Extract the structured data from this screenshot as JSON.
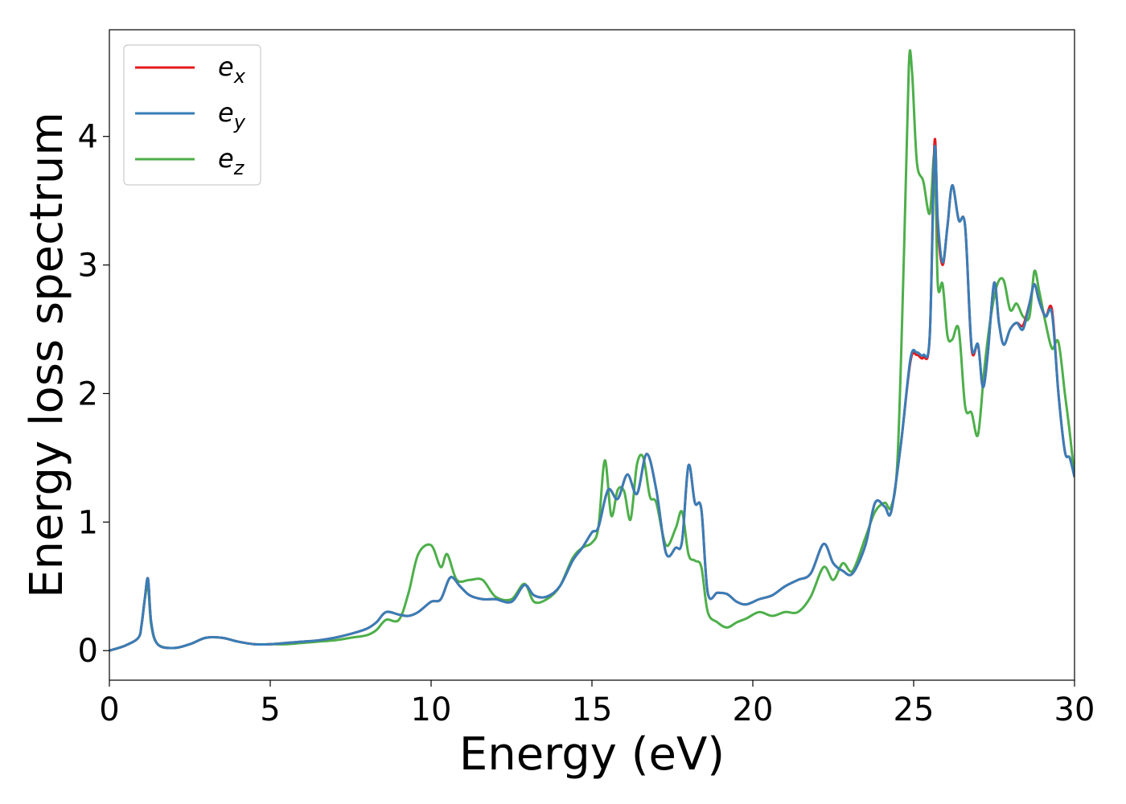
{
  "chart_data": {
    "type": "line",
    "xlabel": "Energy (eV)",
    "ylabel": "Energy loss spectrum",
    "xlim": [
      0,
      30
    ],
    "ylim": [
      -0.23,
      4.83
    ],
    "xticks": [
      0,
      5,
      10,
      15,
      20,
      25,
      30
    ],
    "yticks": [
      0,
      1,
      2,
      3,
      4
    ],
    "xtick_labels": [
      "0",
      "5",
      "10",
      "15",
      "20",
      "25",
      "30"
    ],
    "ytick_labels": [
      "0",
      "1",
      "2",
      "3",
      "4"
    ],
    "grid": false,
    "legend_position": "top-left",
    "series": [
      {
        "name": "e",
        "subscript": "x",
        "color": "#e41a1c",
        "x": [
          0,
          0.5,
          0.9,
          1.0,
          1.1,
          1.2,
          1.3,
          1.5,
          2.0,
          2.5,
          3.0,
          3.5,
          4.0,
          4.5,
          5.0,
          5.5,
          6.0,
          6.5,
          7.0,
          7.5,
          8.0,
          8.3,
          8.6,
          9.0,
          9.3,
          9.6,
          10.0,
          10.3,
          10.6,
          10.9,
          11.2,
          11.6,
          12.0,
          12.5,
          12.9,
          13.2,
          13.6,
          14.0,
          14.4,
          14.7,
          15.0,
          15.2,
          15.5,
          15.8,
          16.1,
          16.4,
          16.7,
          17.0,
          17.3,
          17.6,
          17.8,
          18.0,
          18.2,
          18.4,
          18.6,
          18.9,
          19.2,
          19.5,
          19.8,
          20.2,
          20.6,
          21.0,
          21.4,
          21.8,
          22.2,
          22.5,
          22.8,
          23.1,
          23.5,
          23.8,
          24.1,
          24.3,
          24.6,
          24.9,
          25.1,
          25.3,
          25.5,
          25.65,
          25.75,
          25.9,
          26.05,
          26.2,
          26.4,
          26.6,
          26.8,
          27.0,
          27.15,
          27.3,
          27.5,
          27.65,
          27.8,
          28.0,
          28.2,
          28.4,
          28.6,
          28.75,
          28.9,
          29.1,
          29.3,
          29.5,
          29.7,
          29.85,
          30.0
        ],
        "y": [
          0,
          0.04,
          0.1,
          0.2,
          0.4,
          0.56,
          0.22,
          0.05,
          0.02,
          0.05,
          0.1,
          0.1,
          0.07,
          0.05,
          0.05,
          0.06,
          0.07,
          0.08,
          0.1,
          0.13,
          0.17,
          0.22,
          0.3,
          0.28,
          0.27,
          0.3,
          0.38,
          0.4,
          0.57,
          0.5,
          0.43,
          0.4,
          0.4,
          0.38,
          0.51,
          0.43,
          0.42,
          0.5,
          0.7,
          0.8,
          0.92,
          0.96,
          1.25,
          1.18,
          1.37,
          1.22,
          1.53,
          1.25,
          0.76,
          0.8,
          0.85,
          1.44,
          1.15,
          1.1,
          0.45,
          0.45,
          0.44,
          0.38,
          0.36,
          0.4,
          0.43,
          0.5,
          0.55,
          0.6,
          0.83,
          0.68,
          0.62,
          0.6,
          0.82,
          1.15,
          1.12,
          1.08,
          1.6,
          2.25,
          2.3,
          2.28,
          2.45,
          3.96,
          3.3,
          3.0,
          3.3,
          3.62,
          3.35,
          3.3,
          2.35,
          2.38,
          2.05,
          2.3,
          2.86,
          2.55,
          2.38,
          2.5,
          2.55,
          2.53,
          2.7,
          2.85,
          2.72,
          2.6,
          2.65,
          2.0,
          1.55,
          1.5,
          1.35
        ]
      },
      {
        "name": "e",
        "subscript": "y",
        "color": "#377eb8",
        "x": [
          0,
          0.5,
          0.9,
          1.0,
          1.1,
          1.2,
          1.3,
          1.5,
          2.0,
          2.5,
          3.0,
          3.5,
          4.0,
          4.5,
          5.0,
          5.5,
          6.0,
          6.5,
          7.0,
          7.5,
          8.0,
          8.3,
          8.6,
          9.0,
          9.3,
          9.6,
          10.0,
          10.3,
          10.6,
          10.9,
          11.2,
          11.6,
          12.0,
          12.5,
          12.9,
          13.2,
          13.6,
          14.0,
          14.4,
          14.7,
          15.0,
          15.2,
          15.5,
          15.8,
          16.1,
          16.4,
          16.7,
          17.0,
          17.3,
          17.6,
          17.8,
          18.0,
          18.2,
          18.4,
          18.6,
          18.9,
          19.2,
          19.5,
          19.8,
          20.2,
          20.6,
          21.0,
          21.4,
          21.8,
          22.2,
          22.5,
          22.8,
          23.1,
          23.5,
          23.8,
          24.1,
          24.3,
          24.6,
          24.9,
          25.1,
          25.3,
          25.5,
          25.65,
          25.75,
          25.9,
          26.05,
          26.2,
          26.4,
          26.6,
          26.8,
          27.0,
          27.15,
          27.3,
          27.5,
          27.65,
          27.8,
          28.0,
          28.2,
          28.4,
          28.6,
          28.75,
          28.9,
          29.1,
          29.3,
          29.5,
          29.7,
          29.85,
          30.0
        ],
        "y": [
          0,
          0.04,
          0.1,
          0.2,
          0.4,
          0.56,
          0.22,
          0.05,
          0.02,
          0.05,
          0.1,
          0.1,
          0.07,
          0.05,
          0.05,
          0.06,
          0.07,
          0.08,
          0.1,
          0.13,
          0.17,
          0.22,
          0.3,
          0.28,
          0.27,
          0.3,
          0.38,
          0.4,
          0.57,
          0.5,
          0.43,
          0.4,
          0.4,
          0.38,
          0.51,
          0.43,
          0.42,
          0.5,
          0.7,
          0.8,
          0.92,
          0.96,
          1.25,
          1.18,
          1.37,
          1.22,
          1.53,
          1.25,
          0.76,
          0.8,
          0.85,
          1.44,
          1.15,
          1.1,
          0.45,
          0.45,
          0.44,
          0.38,
          0.36,
          0.4,
          0.43,
          0.5,
          0.55,
          0.6,
          0.83,
          0.68,
          0.62,
          0.6,
          0.82,
          1.15,
          1.12,
          1.08,
          1.6,
          2.27,
          2.32,
          2.3,
          2.45,
          3.9,
          3.35,
          3.02,
          3.3,
          3.62,
          3.35,
          3.3,
          2.37,
          2.38,
          2.05,
          2.3,
          2.86,
          2.55,
          2.38,
          2.5,
          2.55,
          2.5,
          2.7,
          2.85,
          2.72,
          2.6,
          2.62,
          2.0,
          1.55,
          1.5,
          1.35
        ]
      },
      {
        "name": "e",
        "subscript": "z",
        "color": "#4daf4a",
        "x": [
          0,
          0.5,
          0.9,
          1.0,
          1.1,
          1.2,
          1.3,
          1.5,
          2.0,
          2.5,
          3.0,
          3.5,
          4.0,
          4.5,
          5.0,
          5.5,
          6.0,
          6.5,
          7.0,
          7.5,
          8.0,
          8.3,
          8.6,
          9.0,
          9.3,
          9.6,
          10.0,
          10.3,
          10.5,
          10.8,
          11.2,
          11.6,
          12.0,
          12.5,
          12.9,
          13.2,
          13.6,
          14.0,
          14.4,
          14.7,
          15.0,
          15.2,
          15.4,
          15.6,
          15.8,
          16.0,
          16.2,
          16.4,
          16.6,
          16.8,
          17.0,
          17.3,
          17.6,
          17.8,
          18.0,
          18.2,
          18.4,
          18.6,
          18.9,
          19.2,
          19.5,
          19.8,
          20.2,
          20.6,
          21.0,
          21.4,
          21.8,
          22.2,
          22.5,
          22.8,
          23.1,
          23.5,
          23.8,
          24.1,
          24.3,
          24.5,
          24.7,
          24.85,
          24.95,
          25.1,
          25.3,
          25.5,
          25.65,
          25.75,
          25.9,
          26.05,
          26.2,
          26.4,
          26.6,
          26.8,
          27.0,
          27.2,
          27.4,
          27.6,
          27.8,
          28.0,
          28.2,
          28.4,
          28.6,
          28.75,
          28.9,
          29.1,
          29.3,
          29.5,
          29.7,
          29.85,
          30.0
        ],
        "y": [
          0,
          0.04,
          0.1,
          0.2,
          0.4,
          0.5,
          0.2,
          0.05,
          0.02,
          0.05,
          0.1,
          0.1,
          0.07,
          0.05,
          0.05,
          0.05,
          0.06,
          0.07,
          0.08,
          0.1,
          0.12,
          0.16,
          0.24,
          0.24,
          0.45,
          0.75,
          0.82,
          0.65,
          0.75,
          0.55,
          0.55,
          0.55,
          0.42,
          0.4,
          0.52,
          0.38,
          0.4,
          0.5,
          0.72,
          0.8,
          0.84,
          0.96,
          1.48,
          1.05,
          1.25,
          1.24,
          1.02,
          1.45,
          1.5,
          1.2,
          1.15,
          0.82,
          0.95,
          1.08,
          0.75,
          0.7,
          0.65,
          0.3,
          0.22,
          0.18,
          0.22,
          0.25,
          0.3,
          0.27,
          0.3,
          0.3,
          0.42,
          0.65,
          0.55,
          0.68,
          0.62,
          0.88,
          1.08,
          1.15,
          1.12,
          1.5,
          3.1,
          4.55,
          4.5,
          3.8,
          3.65,
          3.4,
          3.85,
          2.85,
          2.85,
          2.45,
          2.42,
          2.5,
          1.9,
          1.85,
          1.68,
          2.2,
          2.6,
          2.85,
          2.88,
          2.65,
          2.7,
          2.6,
          2.6,
          2.95,
          2.8,
          2.55,
          2.35,
          2.4,
          2.0,
          1.7,
          1.35
        ]
      }
    ]
  }
}
